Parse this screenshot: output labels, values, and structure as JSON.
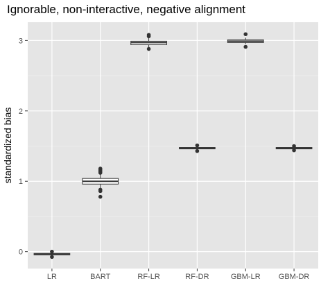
{
  "chart_data": {
    "type": "boxplot",
    "title": "Ignorable, non-interactive, negative alignment",
    "xlabel": "",
    "ylabel": "standardized bias",
    "categories": [
      "LR",
      "BART",
      "RF-LR",
      "RF-DR",
      "GBM-LR",
      "GBM-DR"
    ],
    "yticks": [
      0,
      1,
      2,
      3
    ],
    "ylim": [
      -0.24,
      3.26
    ],
    "grid": true,
    "boxes": [
      {
        "category": "LR",
        "q1": -0.045,
        "median": -0.035,
        "q3": -0.025,
        "whisker_low": -0.06,
        "whisker_high": -0.01,
        "outliers": [
          0.0,
          -0.075
        ]
      },
      {
        "category": "BART",
        "q1": 0.96,
        "median": 1.0,
        "q3": 1.04,
        "whisker_low": 0.9,
        "whisker_high": 1.1,
        "outliers": [
          1.18,
          1.16,
          1.14,
          1.12,
          0.88,
          0.86,
          0.78
        ]
      },
      {
        "category": "RF-LR",
        "q1": 2.94,
        "median": 2.97,
        "q3": 2.99,
        "whisker_low": 2.9,
        "whisker_high": 3.05,
        "outliers": [
          3.08,
          3.06,
          2.88
        ]
      },
      {
        "category": "RF-DR",
        "q1": 1.46,
        "median": 1.47,
        "q3": 1.48,
        "whisker_low": 1.45,
        "whisker_high": 1.49,
        "outliers": [
          1.51,
          1.43
        ]
      },
      {
        "category": "GBM-LR",
        "q1": 2.97,
        "median": 2.99,
        "q3": 3.01,
        "whisker_low": 2.95,
        "whisker_high": 3.04,
        "outliers": [
          3.09,
          2.91
        ]
      },
      {
        "category": "GBM-DR",
        "q1": 1.46,
        "median": 1.47,
        "q3": 1.48,
        "whisker_low": 1.45,
        "whisker_high": 1.49,
        "outliers": [
          1.5,
          1.44
        ]
      }
    ]
  },
  "colors": {
    "panel": "#e5e5e5",
    "grid_major": "#ffffff",
    "grid_minor": "#f1f1f1",
    "box_fill": "#ffffff",
    "box_stroke": "#333333",
    "tick_text": "#4d4d4d",
    "axis_title": "#000000"
  }
}
